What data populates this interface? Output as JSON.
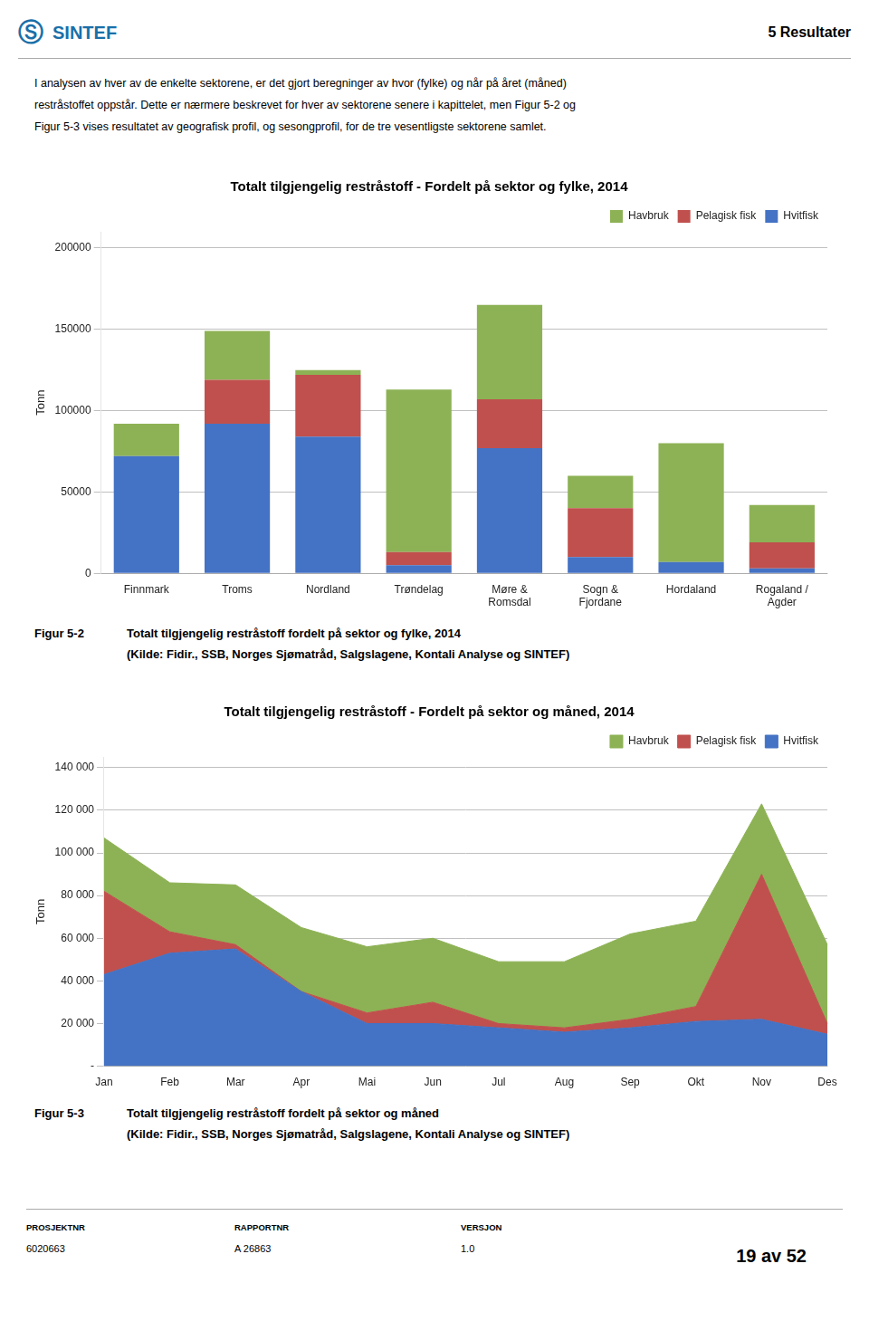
{
  "page": {
    "header": {
      "logo": "Ⓢ",
      "name": "SINTEF",
      "section": "5 Resultater"
    },
    "body": [
      "I analysen av hver av de enkelte sektorene, er det gjort beregninger av hvor (fylke) og når på året (måned)",
      "restråstoffet oppstår. Dette er nærmere beskrevet for hver av sektorene senere i kapittelet, men Figur 5-2 og",
      "Figur 5-3 vises resultatet av geografisk profil, og sesongprofil, for de tre vesentligste sektorene samlet."
    ],
    "footer": {
      "fields": [
        {
          "label": "PROSJEKTNR",
          "value": "6020663"
        },
        {
          "label": "RAPPORTNR",
          "value": "A 26863"
        },
        {
          "label": "VERSJON",
          "value": "1.0"
        }
      ],
      "page": "19 av 52"
    }
  },
  "chart_data": [
    {
      "type": "bar",
      "stacked": true,
      "title": "Totalt tilgjengelig restråstoff - Fordelt på sektor og fylke, 2014",
      "ylabel": "Tonn",
      "categories": [
        "Finnmark",
        "Troms",
        "Nordland",
        "Trøndelag",
        "Møre &\nRomsdal",
        "Sogn &\nFjordane",
        "Hordaland",
        "Rogaland /\nAgder"
      ],
      "series": [
        {
          "name": "Hvitfisk",
          "color": "#4472C4",
          "values": [
            72000,
            92000,
            84000,
            5000,
            77000,
            10000,
            7000,
            3000
          ]
        },
        {
          "name": "Pelagisk fisk",
          "color": "#C0504D",
          "values": [
            0,
            27000,
            38000,
            8000,
            30000,
            30000,
            0,
            16000
          ]
        },
        {
          "name": "Havbruk",
          "color": "#8DB255",
          "values": [
            20000,
            30000,
            3000,
            100000,
            58000,
            20000,
            73000,
            23000
          ]
        }
      ],
      "ylim": [
        0,
        210000
      ],
      "yticks": [
        0,
        50000,
        100000,
        150000,
        200000
      ],
      "grid": true,
      "legend": "upper right",
      "caption": {
        "label": "Figur 5-2",
        "lines": [
          "Totalt tilgjengelig restråstoff fordelt på sektor og fylke, 2014",
          "(Kilde: Fidir., SSB, Norges Sjømatråd, Salgslagene, Kontali Analyse og SINTEF)"
        ]
      }
    },
    {
      "type": "area",
      "stacked": true,
      "title": "Totalt tilgjengelig restråstoff - Fordelt på sektor og måned, 2014",
      "ylabel": "Tonn",
      "categories": [
        "Jan",
        "Feb",
        "Mar",
        "Apr",
        "Mai",
        "Jun",
        "Jul",
        "Aug",
        "Sep",
        "Okt",
        "Nov",
        "Des"
      ],
      "series": [
        {
          "name": "Hvitfisk",
          "color": "#4472C4",
          "values": [
            43000,
            53000,
            55000,
            35000,
            20000,
            20000,
            18000,
            16000,
            18000,
            21000,
            22000,
            15000
          ]
        },
        {
          "name": "Pelagisk fisk",
          "color": "#C0504D",
          "values": [
            39000,
            10000,
            2000,
            0,
            5000,
            10000,
            2000,
            2000,
            4000,
            7000,
            68000,
            5000
          ]
        },
        {
          "name": "Havbruk",
          "color": "#8DB255",
          "values": [
            25000,
            23000,
            28000,
            30000,
            31000,
            30000,
            29000,
            31000,
            40000,
            40000,
            33000,
            37000
          ]
        }
      ],
      "ylim": [
        0,
        145000
      ],
      "yticks": [
        {
          "value": 0,
          "label": "-"
        },
        {
          "value": 20000,
          "label": "20 000"
        },
        {
          "value": 40000,
          "label": "40 000"
        },
        {
          "value": 60000,
          "label": "60 000"
        },
        {
          "value": 80000,
          "label": "80 000"
        },
        {
          "value": 100000,
          "label": "100 000"
        },
        {
          "value": 120000,
          "label": "120 000"
        },
        {
          "value": 140000,
          "label": "140 000"
        }
      ],
      "grid": true,
      "legend": "upper right",
      "caption": {
        "label": "Figur 5-3",
        "lines": [
          "Totalt tilgjengelig restråstoff fordelt på sektor og måned",
          "(Kilde: Fidir., SSB, Norges Sjømatråd, Salgslagene, Kontali Analyse og SINTEF)"
        ]
      }
    }
  ]
}
